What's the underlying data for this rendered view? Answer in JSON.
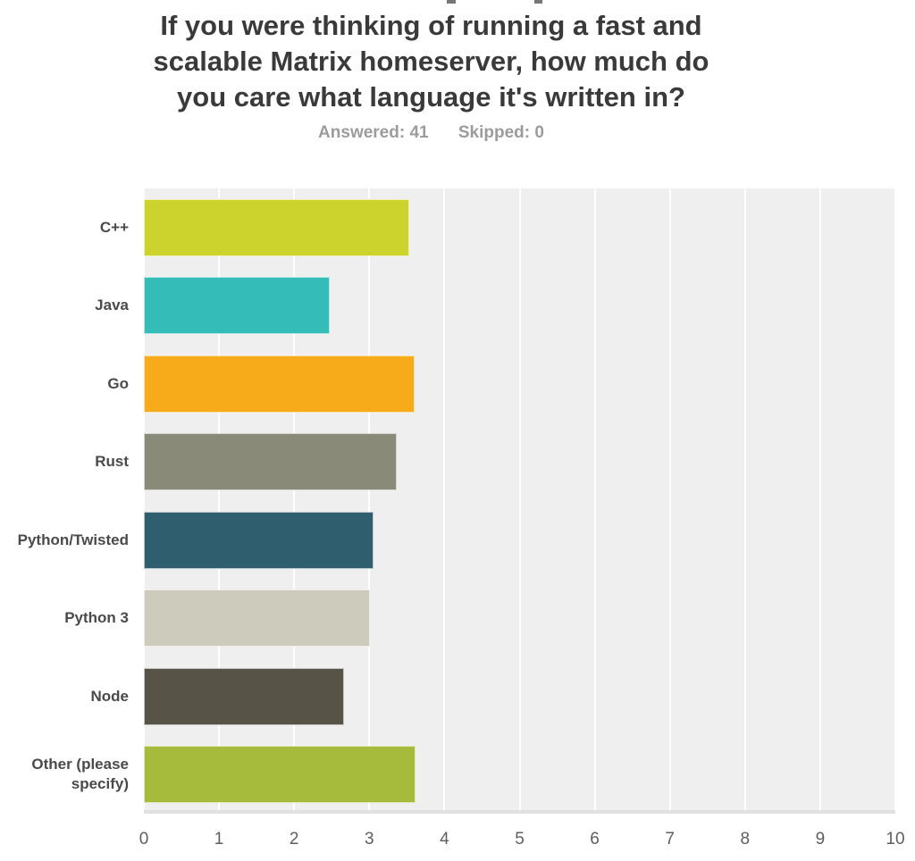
{
  "header": {
    "title_lines": [
      "If you were thinking of running a fast and",
      "scalable Matrix homeserver, how much do",
      "you care what language it's written in?"
    ],
    "answered_label": "Answered: 41",
    "skipped_label": "Skipped: 0"
  },
  "chart_data": {
    "type": "bar",
    "orientation": "horizontal",
    "title": "If you were thinking of running a fast and scalable Matrix homeserver, how much do you care what language it's written in?",
    "answered": 41,
    "skipped": 0,
    "categories": [
      "C++",
      "Java",
      "Go",
      "Rust",
      "Python/Twisted",
      "Python 3",
      "Node",
      "Other (please specify)"
    ],
    "values": [
      3.53,
      2.47,
      3.6,
      3.37,
      3.06,
      3.01,
      2.66,
      3.62
    ],
    "bar_colors": [
      "#cdd32d",
      "#34bcb8",
      "#f7ab1b",
      "#8a8a79",
      "#2f5e6f",
      "#cccbbc",
      "#575447",
      "#a6bb3b"
    ],
    "x_ticks": [
      0,
      1,
      2,
      3,
      4,
      5,
      6,
      7,
      8,
      9,
      10
    ],
    "xlim": [
      0,
      10
    ],
    "xlabel": "",
    "ylabel": "",
    "grid": true,
    "legend": "none",
    "plot_background": "#efefef",
    "gridline_color": "#ffffff",
    "axis_line_color": "#e1e1e1"
  }
}
